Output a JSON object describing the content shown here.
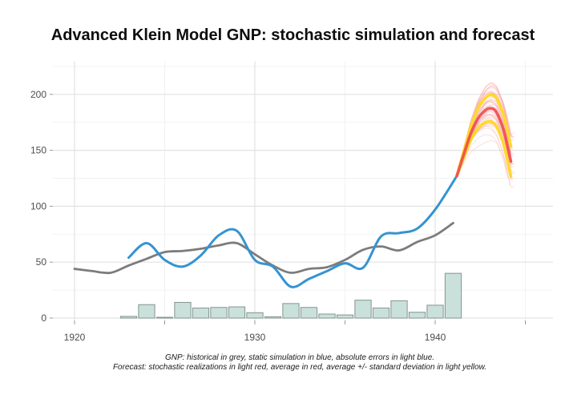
{
  "header": {
    "title": "Advanced Klein Model GNP: stochastic simulation and forecast"
  },
  "caption": {
    "line1": "GNP: historical in grey, static simulation in blue, absolute errors in light blue.",
    "line2": "Forecast: stochastic realizations in light red, average in red, average +/- standard deviation in light yellow."
  },
  "chart_data": {
    "type": "line",
    "title": "Advanced Klein Model GNP: stochastic simulation and forecast",
    "xlabel": "",
    "ylabel": "",
    "x_axis": {
      "range": [
        1918.8,
        1946.5
      ],
      "major_ticks": [
        1920,
        1930,
        1940
      ],
      "labels": [
        "1920",
        "1930",
        "1940"
      ],
      "minor_ticks": [
        1925,
        1935,
        1945
      ]
    },
    "y_axis": {
      "range": [
        -2,
        230
      ],
      "major_ticks": [
        0,
        50,
        100,
        150,
        200
      ],
      "labels": [
        "0",
        "50",
        "100",
        "150",
        "200"
      ],
      "minor_ticks": [
        25,
        75,
        125,
        175,
        225
      ]
    },
    "grid": {
      "on": true,
      "major_color": "#e3e3e3",
      "minor_color": "#f1f1f1"
    },
    "legend": "in caption below plot",
    "series": {
      "historical": {
        "name": "GNP historical",
        "style": "line",
        "color": "#7c7c7c",
        "years": [
          1920,
          1921,
          1922,
          1923,
          1924,
          1925,
          1926,
          1927,
          1928,
          1929,
          1930,
          1931,
          1932,
          1933,
          1934,
          1935,
          1936,
          1937,
          1938,
          1939,
          1940,
          1941
        ],
        "values": [
          44,
          42,
          40.5,
          47,
          53,
          59,
          60,
          62,
          65,
          67,
          57,
          47,
          40.5,
          44,
          45.5,
          52,
          61,
          64,
          60.5,
          68,
          74,
          85
        ]
      },
      "static_simulation": {
        "name": "static simulation",
        "style": "line",
        "color": "#3593d2",
        "years": [
          1923,
          1924,
          1925,
          1926,
          1927,
          1928,
          1929,
          1930,
          1931,
          1932,
          1933,
          1934,
          1935,
          1936,
          1937,
          1938,
          1939,
          1940,
          1941.2
        ],
        "values": [
          54,
          67,
          52,
          46,
          56,
          74,
          78,
          52,
          46,
          28,
          35,
          42,
          49,
          45,
          73,
          76,
          80,
          97,
          127
        ]
      },
      "absolute_errors": {
        "name": "absolute errors",
        "style": "bar",
        "fill": "#c9e1da",
        "stroke": "#84958f",
        "bar_width_years": 0.9,
        "years": [
          1923,
          1924,
          1925,
          1926,
          1927,
          1928,
          1929,
          1930,
          1931,
          1932,
          1933,
          1934,
          1935,
          1936,
          1937,
          1938,
          1939,
          1940,
          1941
        ],
        "values": [
          1.5,
          12,
          0.7,
          14,
          9,
          9.5,
          10,
          4.8,
          1.2,
          13,
          9.5,
          3.6,
          2.8,
          16,
          9,
          15.5,
          5.2,
          11.5,
          40
        ]
      },
      "forecast": {
        "name": "stochastic forecast",
        "x": [
          1941.2,
          1941.6,
          1942.0,
          1942.4,
          1942.8,
          1943.1,
          1943.4,
          1943.8,
          1944.2
        ],
        "average": [
          127,
          147,
          166,
          179,
          186,
          187.5,
          184,
          168,
          140
        ],
        "sd": [
          0,
          3,
          6,
          9,
          11,
          12,
          12.5,
          13,
          13.5
        ],
        "colors": {
          "average": "#ed4a4d",
          "band": "#ffd92b",
          "realizations": "#f6a09e"
        },
        "realizations": {
          "count": 46,
          "seed": 7,
          "spread": 2.5
        }
      }
    }
  }
}
